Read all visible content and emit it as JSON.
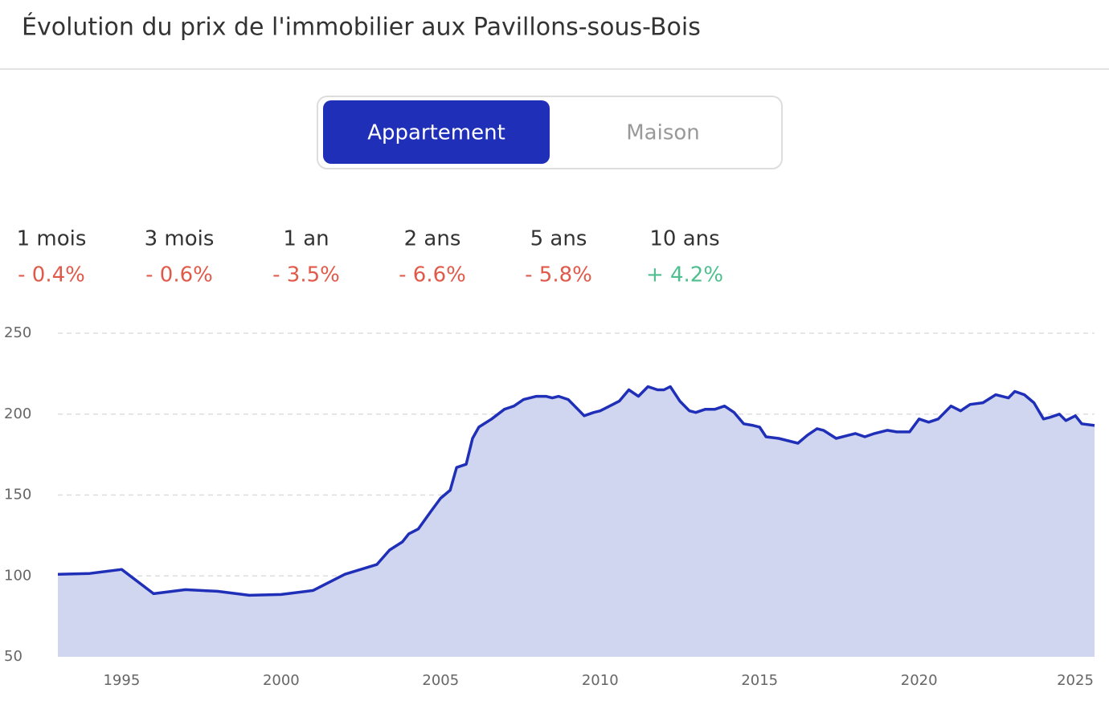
{
  "header": {
    "title": "Évolution du prix de l'immobilier aux Pavillons-sous-Bois"
  },
  "toggle": {
    "options": [
      "Appartement",
      "Maison"
    ]
  },
  "stats": [
    {
      "label": "1 mois",
      "value": "- 0.4%",
      "color": "#e05a4a"
    },
    {
      "label": "3 mois",
      "value": "- 0.6%",
      "color": "#e05a4a"
    },
    {
      "label": "1 an",
      "value": "- 3.5%",
      "color": "#e05a4a"
    },
    {
      "label": "2 ans",
      "value": "- 6.6%",
      "color": "#e05a4a"
    },
    {
      "label": "5 ans",
      "value": "- 5.8%",
      "color": "#e05a4a"
    },
    {
      "label": "10 ans",
      "value": "+ 4.2%",
      "color": "#4fbf8f"
    }
  ],
  "chart_data": {
    "type": "area",
    "color": "#1f2fb8",
    "fill": "#d1d6f0",
    "grid": true,
    "x": [
      1993,
      1994,
      1995,
      1996,
      1997,
      1998,
      1999,
      2000,
      2001,
      2002,
      2003,
      2003.4,
      2003.8,
      2004,
      2004.3,
      2004.7,
      2005,
      2005.3,
      2005.5,
      2005.8,
      2006,
      2006.2,
      2006.6,
      2007,
      2007.3,
      2007.6,
      2008,
      2008.3,
      2008.5,
      2008.7,
      2009,
      2009.3,
      2009.5,
      2009.8,
      2010,
      2010.3,
      2010.6,
      2010.9,
      2011.2,
      2011.5,
      2011.8,
      2012,
      2012.2,
      2012.5,
      2012.8,
      2013,
      2013.3,
      2013.6,
      2013.9,
      2014.2,
      2014.5,
      2014.8,
      2015,
      2015.2,
      2015.6,
      2016,
      2016.2,
      2016.5,
      2016.8,
      2017,
      2017.4,
      2017.8,
      2018,
      2018.3,
      2018.6,
      2019,
      2019.3,
      2019.7,
      2020,
      2020.3,
      2020.6,
      2021,
      2021.3,
      2021.6,
      2022,
      2022.4,
      2022.8,
      2023,
      2023.3,
      2023.6,
      2023.9,
      2024.1,
      2024.4,
      2024.6,
      2024.9,
      2025.1,
      2025.5
    ],
    "values": [
      101,
      101.5,
      104,
      89,
      91.5,
      90.5,
      88,
      88.5,
      91,
      101,
      107,
      116,
      121,
      126,
      129,
      140,
      148,
      153,
      167,
      169,
      185,
      192,
      197,
      203,
      205,
      209,
      211,
      211,
      210,
      211,
      209,
      203,
      199,
      201,
      202,
      205,
      208,
      215,
      211,
      217,
      215,
      215,
      217,
      208,
      202,
      201,
      203,
      203,
      205,
      201,
      194,
      193,
      192,
      186,
      185,
      183,
      182,
      187,
      191,
      190,
      185,
      187,
      188,
      186,
      188,
      190,
      189,
      189,
      197,
      195,
      197,
      205,
      202,
      206,
      207,
      212,
      210,
      214,
      212,
      207,
      197,
      198,
      200,
      196,
      199,
      194,
      193
    ],
    "xlim": [
      1993,
      2025.5
    ],
    "xticks": [
      1995,
      2000,
      2005,
      2010,
      2015,
      2020,
      2025
    ],
    "ylim": [
      50,
      250
    ],
    "yticks": [
      50,
      100,
      150,
      200,
      250
    ]
  }
}
